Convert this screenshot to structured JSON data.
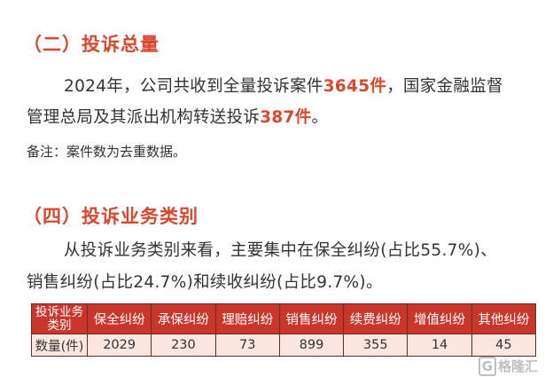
{
  "section2": {
    "heading": "（二）投诉总量",
    "para_line1_pre": "2024年，公司共收到全量投诉案件",
    "para_line1_hl": "3645件",
    "para_line1_post": "，国家金融监督",
    "para_line2_pre": "管理总局及其派出机构转送投诉",
    "para_line2_hl": "387件",
    "para_line2_post": "。",
    "note": "备注：案件数为去重数据。"
  },
  "section4": {
    "heading": "（四）投诉业务类别",
    "para_line1": "从投诉业务类别来看，主要集中在保全纠纷(占比55.7%)、",
    "para_line2": "销售纠纷(占比24.7%)和续收纠纷(占比9.7%)。"
  },
  "table": {
    "header_first": "投诉业务类别",
    "columns": [
      "保全纠纷",
      "承保纠纷",
      "理赔纠纷",
      "销售纠纷",
      "续费纠纷",
      "增值纠纷",
      "其他纠纷"
    ],
    "row_label": "数量(件)",
    "values": [
      "2029",
      "230",
      "73",
      "899",
      "355",
      "14",
      "45"
    ]
  },
  "watermark": "格隆汇",
  "colors": {
    "accent": "#d9472c",
    "table_header": "#c8362c",
    "table_row": "#fbe6e0"
  }
}
